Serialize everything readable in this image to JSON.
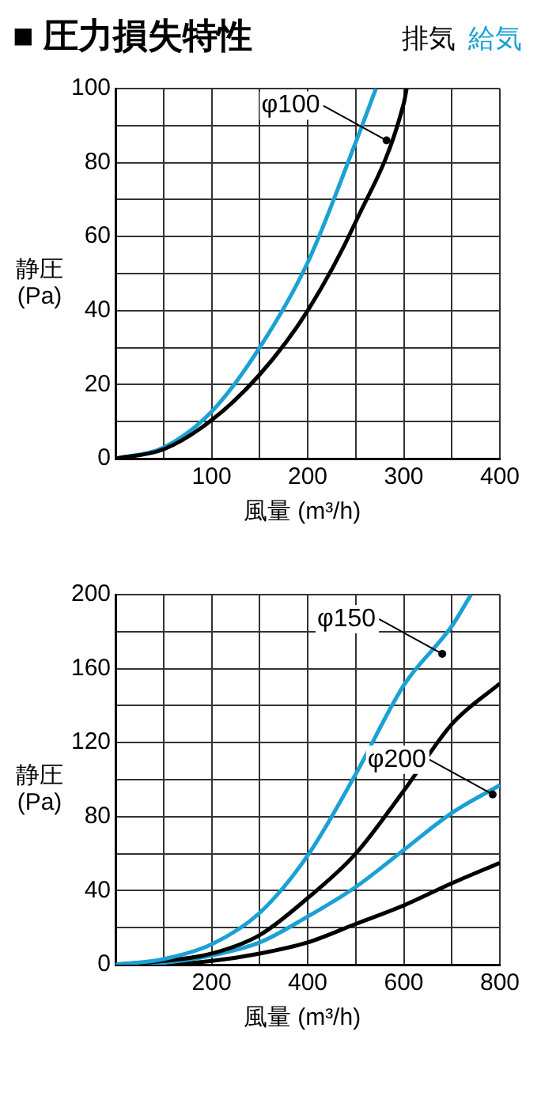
{
  "chart_data": [
    {
      "type": "line",
      "title": "■ 圧力損失特性",
      "xlabel": "風量 (m³/h)",
      "ylabel": "静圧(Pa)",
      "legend": "top right",
      "grid": true,
      "xlim": [
        0,
        400
      ],
      "ylim": [
        0,
        100
      ],
      "xticks": [
        {
          "value": 0,
          "label": null
        },
        {
          "value": 50,
          "label": null
        },
        100,
        {
          "value": 150,
          "label": null
        },
        200,
        {
          "value": 250,
          "label": null
        },
        300,
        {
          "value": 350,
          "label": null
        },
        400
      ],
      "yticks": [
        0,
        {
          "value": 10,
          "label": null
        },
        20,
        {
          "value": 30,
          "label": null
        },
        40,
        {
          "value": 50,
          "label": null
        },
        60,
        {
          "value": 70,
          "label": null
        },
        80,
        {
          "value": 90,
          "label": null
        },
        100
      ],
      "annotations": [
        {
          "text": "φ100",
          "x": 282,
          "y": 86
        }
      ],
      "series": [
        {
          "name": "排気",
          "color": "#000000",
          "x": [
            0,
            50,
            100,
            150,
            200,
            250,
            300,
            303
          ],
          "values": [
            0,
            2.5,
            10.4,
            22.7,
            40,
            64,
            96,
            100
          ]
        },
        {
          "name": "給気",
          "color": "#1ba1d4",
          "x": [
            0,
            50,
            100,
            150,
            200,
            250,
            271
          ],
          "values": [
            0,
            3,
            12.7,
            30,
            53,
            85.5,
            100
          ]
        }
      ]
    },
    {
      "type": "line",
      "xlabel": "風量 (m³/h)",
      "ylabel": "静圧(Pa)",
      "grid": true,
      "xlim": [
        0,
        800
      ],
      "ylim": [
        0,
        200
      ],
      "xticks": [
        {
          "value": 0,
          "label": null
        },
        {
          "value": 100,
          "label": null
        },
        200,
        {
          "value": 300,
          "label": null
        },
        400,
        {
          "value": 500,
          "label": null
        },
        600,
        {
          "value": 700,
          "label": null
        },
        800
      ],
      "yticks": [
        0,
        {
          "value": 20,
          "label": null
        },
        40,
        {
          "value": 60,
          "label": null
        },
        80,
        {
          "value": 100,
          "label": null
        },
        120,
        {
          "value": 140,
          "label": null
        },
        160,
        {
          "value": 180,
          "label": null
        },
        200
      ],
      "annotations": [
        {
          "text": "φ150",
          "x": 680,
          "y": 168
        },
        {
          "text": "φ200",
          "x": 785,
          "y": 92
        }
      ],
      "series": [
        {
          "color": "#1ba1d4",
          "x": [
            0,
            100,
            200,
            300,
            400,
            500,
            600,
            700,
            740
          ],
          "values": [
            0,
            3,
            11,
            28,
            59,
            103,
            151,
            183,
            200
          ]
        },
        {
          "color": "#000000",
          "x": [
            0,
            100,
            200,
            300,
            400,
            500,
            600,
            700,
            800
          ],
          "values": [
            0,
            2,
            6,
            16,
            36,
            60,
            94,
            130,
            152
          ]
        },
        {
          "color": "#1ba1d4",
          "x": [
            0,
            100,
            200,
            300,
            400,
            500,
            600,
            700,
            800
          ],
          "values": [
            0,
            1,
            5,
            12,
            26,
            42,
            62,
            82,
            97
          ]
        },
        {
          "color": "#000000",
          "x": [
            0,
            100,
            200,
            300,
            400,
            500,
            600,
            700,
            800
          ],
          "values": [
            0,
            0,
            2,
            6,
            12,
            22,
            32,
            44,
            55
          ]
        }
      ]
    }
  ]
}
